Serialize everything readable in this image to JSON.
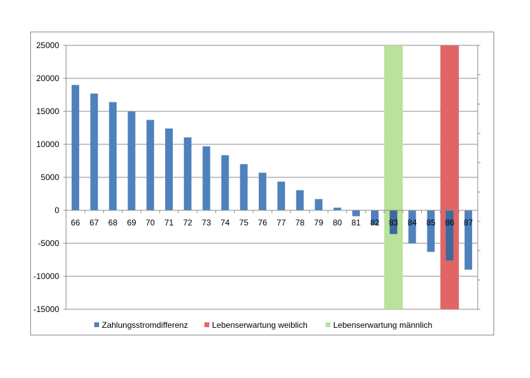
{
  "chart_data": {
    "type": "bar",
    "categories": [
      "66",
      "67",
      "68",
      "69",
      "70",
      "71",
      "72",
      "73",
      "74",
      "75",
      "76",
      "77",
      "78",
      "79",
      "80",
      "81",
      "82",
      "83",
      "84",
      "85",
      "86",
      "87"
    ],
    "series": [
      {
        "name": "Zahlungsstromdifferenz",
        "color": "#4f81bd",
        "values": [
          19000,
          17700,
          16400,
          15000,
          13700,
          12400,
          11050,
          9700,
          8350,
          7000,
          5700,
          4350,
          3050,
          1700,
          400,
          -900,
          -2200,
          -3600,
          -5000,
          -6300,
          -7600,
          -9000
        ]
      }
    ],
    "highlight_bands": [
      {
        "name": "Lebenserwartung weiblich",
        "category": "86",
        "color": "#e06666"
      },
      {
        "name": "Lebenserwartung männlich",
        "category": "83",
        "color": "#b9e29b"
      }
    ],
    "y_ticks": [
      "25000",
      "20000",
      "15000",
      "10000",
      "5000",
      "0",
      "-5000",
      "-10000",
      "-15000"
    ],
    "ylim": [
      -15000,
      25000
    ],
    "grid": true,
    "legend_position": "bottom",
    "legend": [
      {
        "label": "Zahlungsstromdifferenz",
        "color": "#4f81bd"
      },
      {
        "label": "Lebenserwartung weiblich",
        "color": "#e06666"
      },
      {
        "label": "Lebenserwartung männlich",
        "color": "#b9e29b"
      }
    ],
    "title": "",
    "xlabel": "",
    "ylabel": ""
  }
}
